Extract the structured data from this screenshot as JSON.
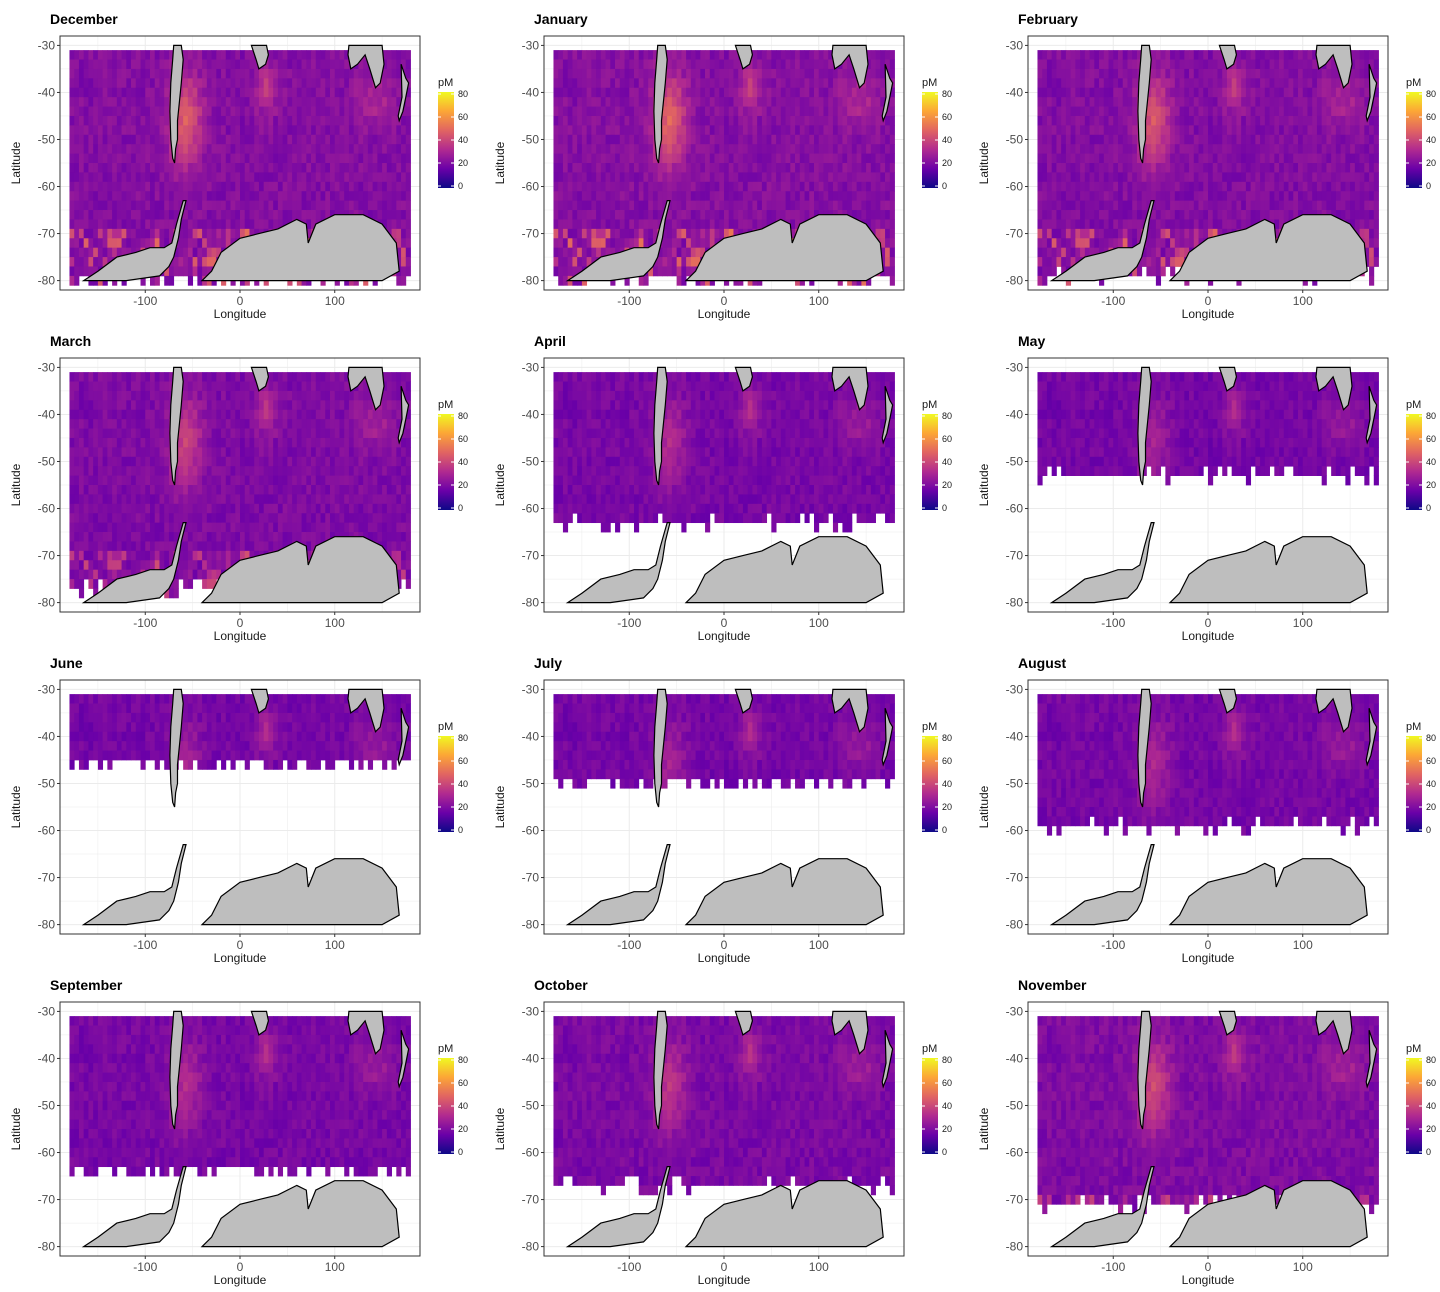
{
  "figure": {
    "panels": [
      {
        "title": "December",
        "ice_edge_lat": -79,
        "intensity": 1.0,
        "coastal_hotspots": true
      },
      {
        "title": "January",
        "ice_edge_lat": -79,
        "intensity": 1.05,
        "coastal_hotspots": true
      },
      {
        "title": "February",
        "ice_edge_lat": -78,
        "intensity": 0.95,
        "coastal_hotspots": true
      },
      {
        "title": "March",
        "ice_edge_lat": -76,
        "intensity": 0.8,
        "coastal_hotspots": true
      },
      {
        "title": "April",
        "ice_edge_lat": -62,
        "intensity": 0.6,
        "coastal_hotspots": false
      },
      {
        "title": "May",
        "ice_edge_lat": -52,
        "intensity": 0.5,
        "coastal_hotspots": false
      },
      {
        "title": "June",
        "ice_edge_lat": -45,
        "intensity": 0.5,
        "coastal_hotspots": false
      },
      {
        "title": "July",
        "ice_edge_lat": -49,
        "intensity": 0.5,
        "coastal_hotspots": false
      },
      {
        "title": "August",
        "ice_edge_lat": -58,
        "intensity": 0.55,
        "coastal_hotspots": false
      },
      {
        "title": "September",
        "ice_edge_lat": -63,
        "intensity": 0.6,
        "coastal_hotspots": false
      },
      {
        "title": "October",
        "ice_edge_lat": -66,
        "intensity": 0.7,
        "coastal_hotspots": false
      },
      {
        "title": "November",
        "ice_edge_lat": -70,
        "intensity": 0.85,
        "coastal_hotspots": true
      }
    ],
    "xlabel": "Longitude",
    "ylabel": "Latitude",
    "x_ticks": [
      "-100",
      "0",
      "100"
    ],
    "y_ticks": [
      "-30",
      "-40",
      "-50",
      "-60",
      "-70",
      "-80"
    ],
    "legend": {
      "title": "pM",
      "labels": [
        "80",
        "60",
        "40",
        "20",
        "0"
      ],
      "colors": [
        "#0d0887",
        "#6a00a8",
        "#b12a90",
        "#e16462",
        "#fca636",
        "#f0f921"
      ]
    },
    "land_color": "#bebebe"
  }
}
